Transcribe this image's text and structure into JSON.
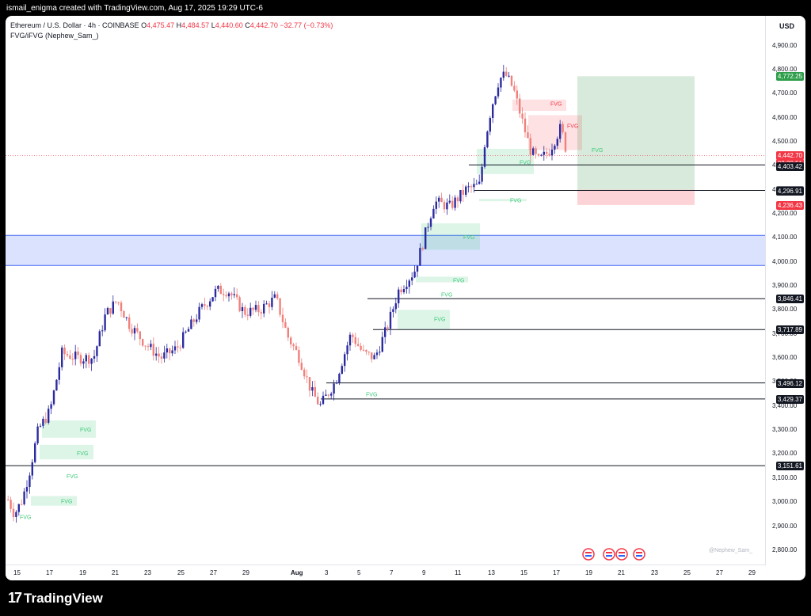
{
  "header": {
    "created_by": "ismail_enigma created with TradingView.com, Aug 17, 2025 19:29 UTC-6"
  },
  "legend": {
    "symbol": "Ethereum / U.S. Dollar · 4h · COINBASE",
    "open_label": "O",
    "open": "4,475.47",
    "high_label": "H",
    "high": "4,484.57",
    "low_label": "L",
    "low": "4,440.60",
    "close_label": "C",
    "close": "4,442.70",
    "change": "−32.77 (−0.73%)",
    "indicator": "FVG/iFVG (Nephew_Sam_)"
  },
  "price_axis": {
    "currency": "USD",
    "ticks": [
      "4,900.00",
      "4,800.00",
      "4,700.00",
      "4,600.00",
      "4,500.00",
      "4,400.00",
      "4,300.00",
      "4,200.00",
      "4,100.00",
      "4,000.00",
      "3,900.00",
      "3,800.00",
      "3,700.00",
      "3,600.00",
      "3,500.00",
      "3,400.00",
      "3,300.00",
      "3,200.00",
      "3,100.00",
      "3,000.00",
      "2,900.00",
      "2,800.00"
    ],
    "labels": [
      {
        "text": "4,772.25",
        "kind": "target"
      },
      {
        "text": "4,442.70",
        "kind": "current"
      },
      {
        "text": "02:30:51",
        "kind": "countdown"
      },
      {
        "text": "4,403.42",
        "kind": "level"
      },
      {
        "text": "4,300.24",
        "kind": "grey"
      },
      {
        "text": "4,296.91",
        "kind": "level"
      },
      {
        "text": "4,236.43",
        "kind": "stop"
      },
      {
        "text": "3,846.41",
        "kind": "level"
      },
      {
        "text": "3,717.89",
        "kind": "level"
      },
      {
        "text": "3,496.12",
        "kind": "level"
      },
      {
        "text": "3,429.37",
        "kind": "level"
      },
      {
        "text": "3,151.61",
        "kind": "level"
      }
    ]
  },
  "time_axis": {
    "ticks": [
      "15",
      "17",
      "19",
      "21",
      "23",
      "25",
      "27",
      "29",
      "Aug",
      "3",
      "5",
      "7",
      "9",
      "11",
      "13",
      "15",
      "17",
      "19",
      "21",
      "23",
      "25",
      "27",
      "29"
    ]
  },
  "fvg_label": "FVG",
  "watermark": "@Nephew_Sam_",
  "footer": {
    "brand": "TradingView"
  },
  "colors": {
    "up": "#2b2ba0",
    "down": "#f0807c",
    "fvg_bull": "#3ec97a",
    "fvg_bear": "#f23645",
    "zone": "#4a6cf7"
  }
}
